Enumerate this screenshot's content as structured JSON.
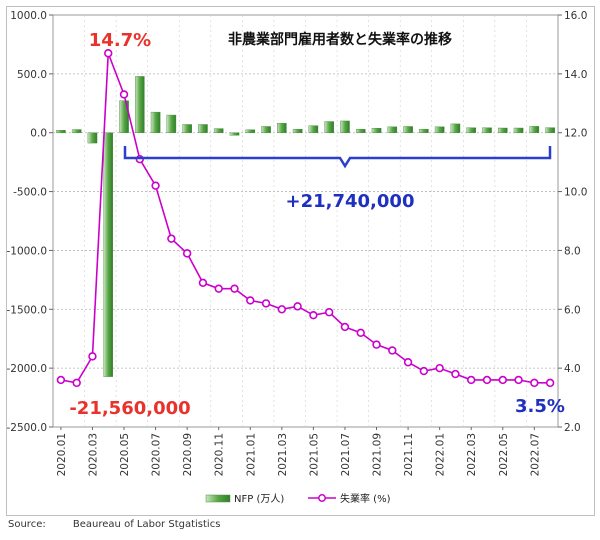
{
  "chart_data": {
    "type": "bar+line",
    "title": "非農業部門雇用者数と失業率の推移",
    "x": [
      "2020.01",
      "2020.02",
      "2020.03",
      "2020.04",
      "2020.05",
      "2020.06",
      "2020.07",
      "2020.08",
      "2020.09",
      "2020.10",
      "2020.11",
      "2020.12",
      "2021.01",
      "2021.02",
      "2021.03",
      "2021.04",
      "2021.05",
      "2021.06",
      "2021.07",
      "2021.08",
      "2021.09",
      "2021.10",
      "2021.11",
      "2021.12",
      "2022.01",
      "2022.02",
      "2022.03",
      "2022.04",
      "2022.05",
      "2022.06",
      "2022.07",
      "2022.08"
    ],
    "x_tick_labels": [
      "2020.01",
      "2020.03",
      "2020.05",
      "2020.07",
      "2020.09",
      "2020.11",
      "2021.01",
      "2021.03",
      "2021.05",
      "2021.07",
      "2021.09",
      "2021.11",
      "2022.01",
      "2022.03",
      "2022.05",
      "2022.07"
    ],
    "y_left": {
      "ylim": [
        -2500,
        1000
      ],
      "ticks": [
        "1000.0",
        "500.0",
        "0.0",
        "-500.0",
        "-1000.0",
        "-1500.0",
        "-2000.0",
        "-2500.0"
      ]
    },
    "y_right": {
      "ylim": [
        2.0,
        16.0
      ],
      "ticks": [
        "16.0",
        "14.0",
        "12.0",
        "10.0",
        "8.0",
        "6.0",
        "4.0",
        "2.0"
      ]
    },
    "series": [
      {
        "name": "NFP (万人)",
        "kind": "bar",
        "axis": "left",
        "values": [
          21,
          27,
          -88,
          -2072,
          272,
          478,
          175,
          150,
          70,
          70,
          35,
          -22,
          25,
          53,
          80,
          30,
          60,
          95,
          100,
          30,
          38,
          50,
          53,
          30,
          50,
          75,
          42,
          42,
          40,
          40,
          54,
          43
        ],
        "color": "#5aa646"
      },
      {
        "name": "失業率 (%)",
        "kind": "line",
        "axis": "right",
        "values": [
          3.6,
          3.5,
          4.4,
          14.7,
          13.3,
          11.1,
          10.2,
          8.4,
          7.9,
          6.9,
          6.7,
          6.7,
          6.3,
          6.2,
          6.0,
          6.1,
          5.8,
          5.9,
          5.4,
          5.2,
          4.8,
          4.6,
          4.2,
          3.9,
          4.0,
          3.8,
          3.6,
          3.6,
          3.6,
          3.6,
          3.5,
          3.5
        ],
        "color": "#cc00cc"
      }
    ],
    "annotations": {
      "peak": "14.7%",
      "trough": "-21,560,000",
      "recovery": "+21,740,000",
      "latest": "3.5%"
    },
    "grid": "horizontal",
    "legend_position": "bottom-center"
  },
  "source": {
    "label": "Source:",
    "value": "Beaureau of Labor Stgatistics"
  },
  "colors": {
    "bar_fill": "#5aa646",
    "line": "#cc00cc",
    "annotation_red": "#e8322b",
    "annotation_blue": "#1f2fbf",
    "brace": "#2a3fcc"
  }
}
